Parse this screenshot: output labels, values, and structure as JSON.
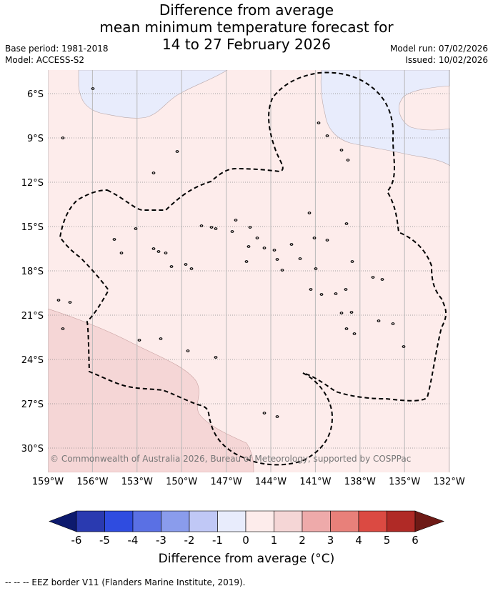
{
  "title": {
    "line1": "Difference from average",
    "line2": "mean minimum temperature forecast for",
    "line3": "14 to 27 February 2026"
  },
  "meta": {
    "base_period": "Base period: 1981-2018",
    "model": "Model: ACCESS-S2",
    "model_run": "Model run: 07/02/2026",
    "issued": "Issued: 10/02/2026"
  },
  "map": {
    "lat_labels": [
      "6°S",
      "9°S",
      "12°S",
      "15°S",
      "18°S",
      "21°S",
      "24°S",
      "27°S",
      "30°S"
    ],
    "lon_labels": [
      "159°W",
      "156°W",
      "153°W",
      "150°W",
      "147°W",
      "144°W",
      "141°W",
      "138°W",
      "135°W",
      "132°W"
    ],
    "copyright": "© Commonwealth of Australia 2026, Bureau of Meteorology, supported by COSPPac",
    "colors": {
      "neutral_warm": "#fdeceb",
      "slightly_cool": "#e8ecfc",
      "slightly_warm": "#f5d6d6"
    }
  },
  "colorbar": {
    "ticks": [
      "-6",
      "-5",
      "-4",
      "-3",
      "-2",
      "-1",
      "0",
      "1",
      "2",
      "3",
      "4",
      "5",
      "6"
    ],
    "colors": [
      "#0d1a6e",
      "#2a3ab0",
      "#2f4ce0",
      "#5a70e4",
      "#8a9cec",
      "#c0c8f6",
      "#e8ecfc",
      "#fdeceb",
      "#f5d6d6",
      "#eeaaaa",
      "#e8807a",
      "#db4a42",
      "#b02a26",
      "#6e1a16"
    ],
    "title": "Difference from average (°C)"
  },
  "footnote": "-- -- -- EEZ border V11 (Flanders Marine Institute, 2019)."
}
